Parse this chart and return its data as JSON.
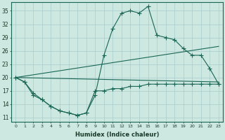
{
  "xlabel": "Humidex (Indice chaleur)",
  "bg_color": "#cce8e0",
  "grid_color": "#aacccc",
  "line_color": "#1a6655",
  "xlim": [
    -0.5,
    23.5
  ],
  "ylim": [
    10,
    37
  ],
  "yticks": [
    11,
    14,
    17,
    20,
    23,
    26,
    29,
    32,
    35
  ],
  "xticks": [
    0,
    1,
    2,
    3,
    4,
    5,
    6,
    7,
    8,
    9,
    10,
    11,
    12,
    13,
    14,
    15,
    16,
    17,
    18,
    19,
    20,
    21,
    22,
    23
  ],
  "line1_x": [
    0,
    1,
    2,
    3,
    4,
    5,
    6,
    7,
    8,
    9,
    10,
    11,
    12,
    13,
    14,
    15,
    16,
    17,
    18,
    19,
    20,
    21,
    22,
    23
  ],
  "line1_y": [
    20,
    19,
    16,
    15,
    13.5,
    12.5,
    12,
    11.5,
    12,
    16,
    25,
    31,
    34.5,
    35,
    34.5,
    36,
    29.5,
    29,
    28.5,
    26.5,
    25,
    25,
    22,
    18.5
  ],
  "line2_x": [
    0,
    23
  ],
  "line2_y": [
    20,
    27
  ],
  "line3_x": [
    0,
    23
  ],
  "line3_y": [
    20,
    19
  ],
  "line4_x": [
    0,
    1,
    2,
    3,
    4,
    5,
    6,
    7,
    8,
    9,
    10,
    11,
    12,
    13,
    14,
    15,
    16,
    17,
    18,
    19,
    20,
    21,
    22,
    23
  ],
  "line4_y": [
    20,
    19,
    16.5,
    15,
    13.5,
    12.5,
    12,
    11.5,
    12,
    17,
    17,
    17.5,
    17.5,
    18,
    18,
    18.5,
    18.5,
    18.5,
    18.5,
    18.5,
    18.5,
    18.5,
    18.5,
    18.5
  ]
}
